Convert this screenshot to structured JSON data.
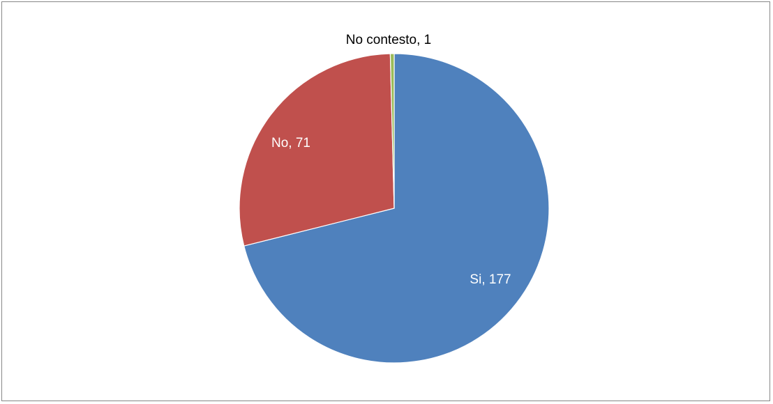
{
  "chart_data": {
    "type": "pie",
    "title": "",
    "slices": [
      {
        "label": "Si",
        "value": 177,
        "color": "#4F81BD",
        "label_text": "Si, 177",
        "label_color": "#FFFFFF"
      },
      {
        "label": "No",
        "value": 71,
        "color": "#C0504D",
        "label_text": "No, 71",
        "label_color": "#FFFFFF"
      },
      {
        "label": "No contesto",
        "value": 1,
        "color": "#9BBB59",
        "label_text": "No contesto, 1",
        "label_color": "#000000"
      }
    ],
    "start_angle": "12 o'clock",
    "direction": "clockwise",
    "legend": "none",
    "border_color": "#868686"
  }
}
